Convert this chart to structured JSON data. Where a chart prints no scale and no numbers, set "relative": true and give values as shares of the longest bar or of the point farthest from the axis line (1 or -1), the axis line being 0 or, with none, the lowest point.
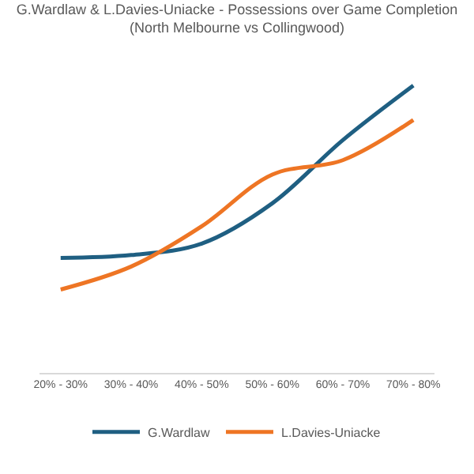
{
  "chart_data": {
    "type": "line",
    "title": "G.Wardlaw & L.Davies-Uniacke - Possessions over Game Completion",
    "subtitle": "(North Melbourne vs Collingwood)",
    "categories": [
      "20% - 30%",
      "30% - 40%",
      "40% - 50%",
      "50% - 60%",
      "60% - 70%",
      "70% - 80%"
    ],
    "relative": true,
    "legend": "bottom",
    "marker": "none",
    "line_style": "solid",
    "series": [
      {
        "name": "G.Wardlaw",
        "color": "#1f5f82",
        "values": [
          0.4,
          0.41,
          0.45,
          0.59,
          0.81,
          1.0
        ]
      },
      {
        "name": "L.Davies-Uniacke",
        "color": "#ee7524",
        "values": [
          0.29,
          0.37,
          0.51,
          0.69,
          0.74,
          0.88
        ]
      }
    ]
  }
}
